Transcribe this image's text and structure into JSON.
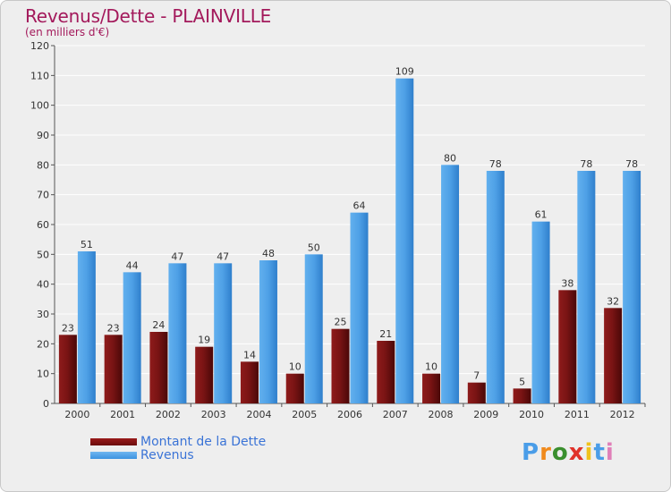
{
  "header": {
    "title": "Revenus/Dette - PLAINVILLE",
    "subtitle": "(en milliers d'€)"
  },
  "chart_data": {
    "type": "bar",
    "categories": [
      "2000",
      "2001",
      "2002",
      "2003",
      "2004",
      "2005",
      "2006",
      "2007",
      "2008",
      "2009",
      "2010",
      "2011",
      "2012"
    ],
    "series": [
      {
        "name": "Montant de la Dette",
        "values": [
          23,
          23,
          24,
          19,
          14,
          10,
          25,
          21,
          10,
          7,
          5,
          38,
          32
        ],
        "color": "#7a1212"
      },
      {
        "name": "Revenus",
        "values": [
          51,
          44,
          47,
          47,
          48,
          50,
          64,
          109,
          80,
          78,
          61,
          78,
          78
        ],
        "color": "#4ea0e6"
      }
    ],
    "ylim": [
      0,
      120
    ],
    "yticks": [
      0,
      10,
      20,
      30,
      40,
      50,
      60,
      70,
      80,
      90,
      100,
      110,
      120
    ],
    "grid": true,
    "legend_position": "bottom-left"
  },
  "legend": {
    "items": [
      {
        "label": "Montant de la Dette",
        "color": "#6b0d0d"
      },
      {
        "label": "Revenus",
        "color": "#3d93e0"
      }
    ]
  },
  "logo": {
    "letters": [
      "P",
      "r",
      "o",
      "x",
      "i",
      "t",
      "i"
    ],
    "colors": [
      "#4a9de8",
      "#f08a1c",
      "#3a8f2e",
      "#e0322a",
      "#f0c21c",
      "#4a9de8",
      "#e07fb8"
    ]
  }
}
